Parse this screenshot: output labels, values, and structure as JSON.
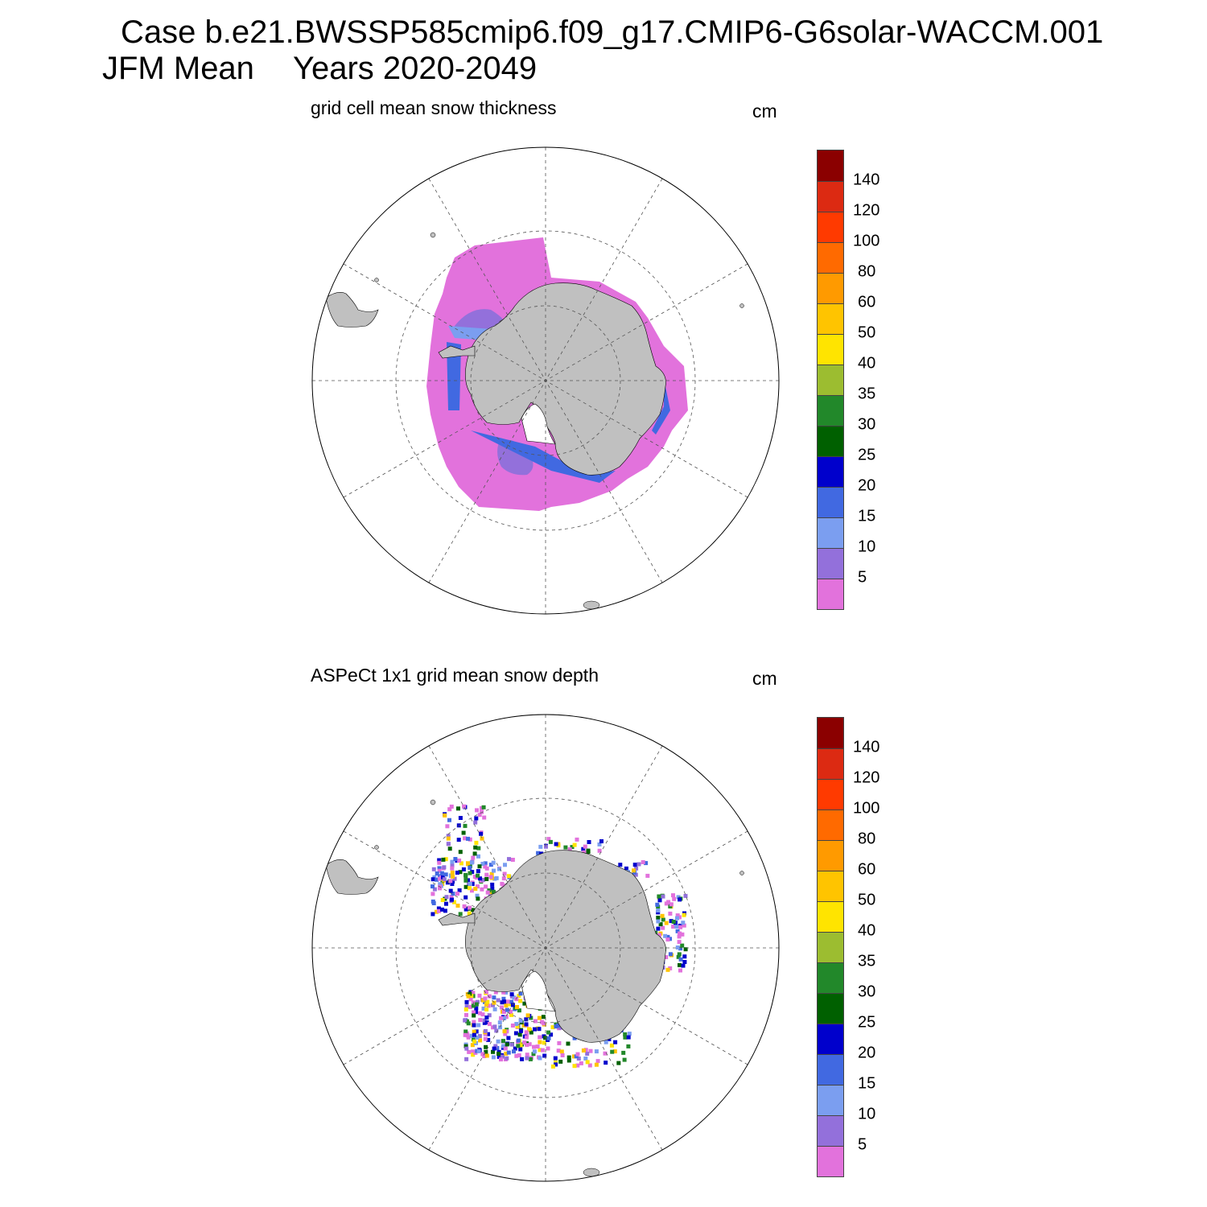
{
  "header": {
    "case_line": "Case b.e21.BWSSP585cmip6.f09_g17.CMIP6-G6solar-WACCM.001",
    "season": "JFM Mean",
    "years": "Years 2020-2049"
  },
  "panels": [
    {
      "title": "grid cell mean snow thickness",
      "units": "cm"
    },
    {
      "title": "ASPeCt 1x1 grid mean snow depth",
      "units": "cm"
    }
  ],
  "colorbar": {
    "labels": [
      "140",
      "120",
      "100",
      "80",
      "60",
      "50",
      "40",
      "35",
      "30",
      "25",
      "20",
      "15",
      "10",
      "5"
    ],
    "colors": [
      "#8b0000",
      "#dc2a12",
      "#ff3a00",
      "#ff6a00",
      "#ff9a00",
      "#ffc400",
      "#ffe400",
      "#9cbd30",
      "#22882a",
      "#006000",
      "#0000cc",
      "#4169e1",
      "#7b9ef0",
      "#9370db",
      "#e272dc"
    ]
  },
  "colors": {
    "land": "#c0c0c0",
    "ocean": "#ffffff",
    "grid": "#555555"
  }
}
